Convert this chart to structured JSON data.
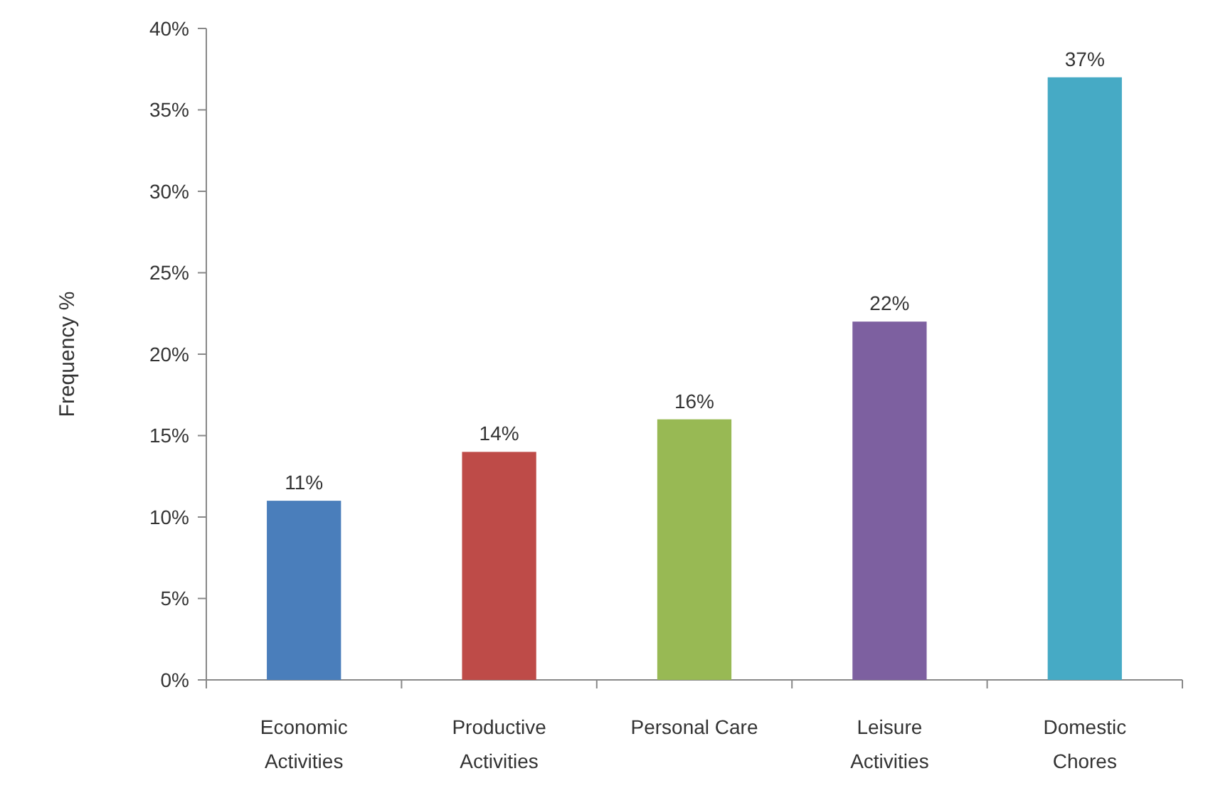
{
  "chart_data": {
    "type": "bar",
    "ylabel": "Frequency %",
    "categories": [
      "Economic Activities",
      "Productive Activities",
      "Personal Care",
      "Leisure Activities",
      "Domestic Chores"
    ],
    "values": [
      11,
      14,
      16,
      22,
      37
    ],
    "value_labels": [
      "11%",
      "14%",
      "16%",
      "22%",
      "37%"
    ],
    "colors": [
      "#4a7ebb",
      "#be4b48",
      "#98b954",
      "#7d60a0",
      "#46aac5"
    ],
    "ylim": [
      0,
      40
    ],
    "yticks": [
      {
        "value": 0,
        "label": "0%"
      },
      {
        "value": 5,
        "label": "5%"
      },
      {
        "value": 10,
        "label": "10%"
      },
      {
        "value": 15,
        "label": "15%"
      },
      {
        "value": 20,
        "label": "20%"
      },
      {
        "value": 25,
        "label": "25%"
      },
      {
        "value": 30,
        "label": "30%"
      },
      {
        "value": 35,
        "label": "35%"
      },
      {
        "value": 40,
        "label": "40%"
      }
    ],
    "grid": false
  }
}
